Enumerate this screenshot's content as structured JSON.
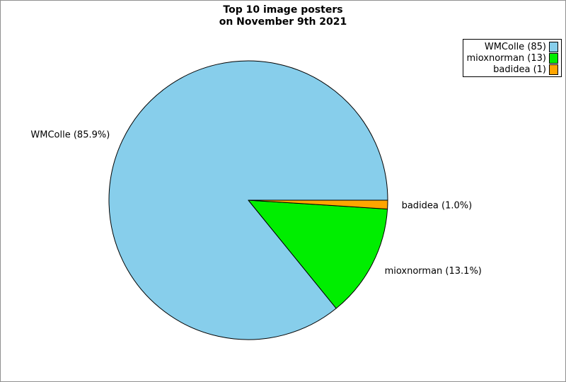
{
  "window": {
    "background": "#ffffff",
    "border_color": "#909090"
  },
  "chart_data": {
    "type": "pie",
    "title": "Top 10 image posters on November 9th 2021",
    "title_lines": [
      "Top 10 image posters",
      "on November 9th 2021"
    ],
    "legend_position": "top-right",
    "startangle_deg": 0,
    "counterclock": true,
    "total": 99,
    "edge_color": "#000000",
    "series": [
      {
        "name": "WMColle",
        "count": 85,
        "percent": 85.9,
        "label": "WMColle (85.9%)",
        "legend_label": "WMColle (85)",
        "color": "#87CEEB"
      },
      {
        "name": "mioxnorman",
        "count": 13,
        "percent": 13.1,
        "label": "mioxnorman (13.1%)",
        "legend_label": "mioxnorman (13)",
        "color": "#00EE00"
      },
      {
        "name": "badidea",
        "count": 1,
        "percent": 1.0,
        "label": "badidea (1.0%)",
        "legend_label": "badidea (1)",
        "color": "#FFA500"
      }
    ]
  }
}
